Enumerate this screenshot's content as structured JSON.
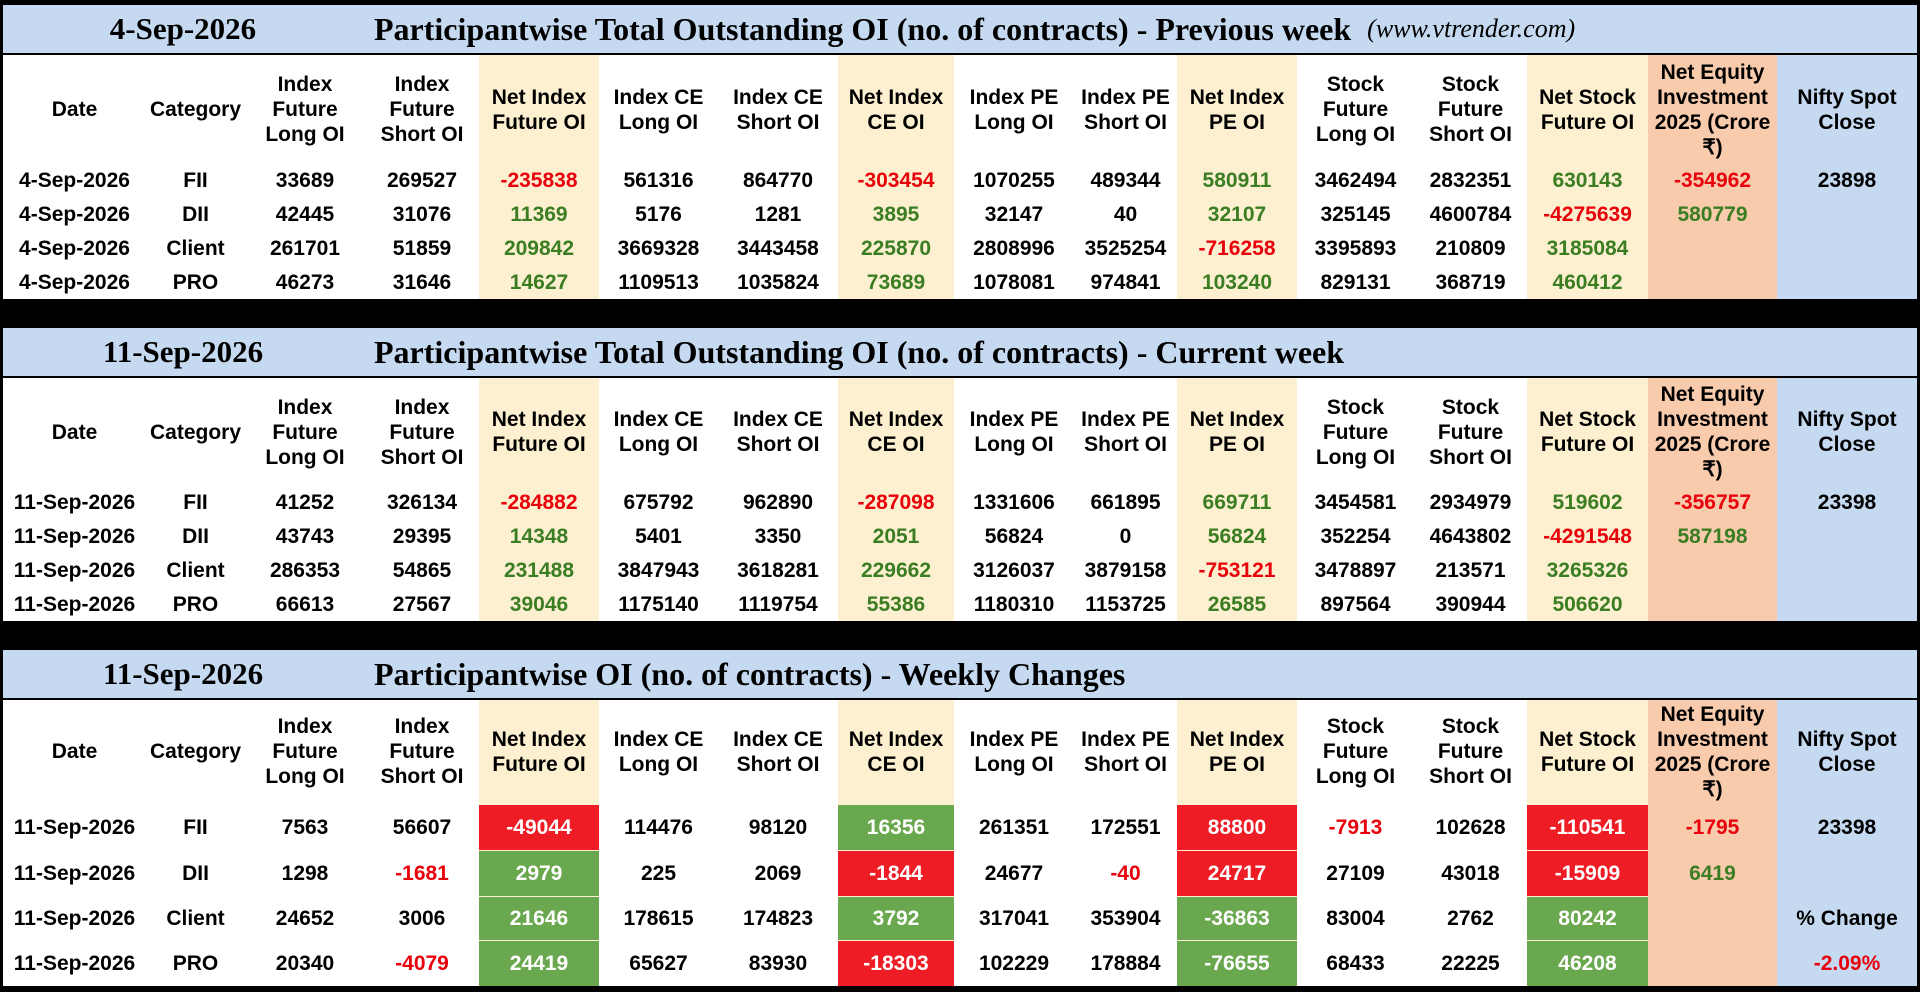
{
  "site": "(www.vtrender.com)",
  "colors": {
    "band": "#c5d9f1",
    "net_column": "#fdf0d0",
    "equity_column": "#f8cbad",
    "positive_text": "#3a7d22",
    "negative_text": "#e8000b",
    "positive_fill": "#6aa84f",
    "negative_fill": "#ee1c25"
  },
  "columns": [
    {
      "label": "Date",
      "type": "plain"
    },
    {
      "label": "Category",
      "type": "plain"
    },
    {
      "label": "Index Future Long OI",
      "type": "plain"
    },
    {
      "label": "Index Future Short OI",
      "type": "plain"
    },
    {
      "label": "Net Index Future OI",
      "type": "net"
    },
    {
      "label": "Index CE Long OI",
      "type": "plain"
    },
    {
      "label": "Index CE Short OI",
      "type": "plain"
    },
    {
      "label": "Net Index CE OI",
      "type": "net"
    },
    {
      "label": "Index PE Long OI",
      "type": "plain"
    },
    {
      "label": "Index PE Short OI",
      "type": "plain"
    },
    {
      "label": "Net Index PE OI",
      "type": "net"
    },
    {
      "label": "Stock Future Long OI",
      "type": "plain"
    },
    {
      "label": "Stock Future Short OI",
      "type": "plain"
    },
    {
      "label": "Net Stock Future OI",
      "type": "net"
    },
    {
      "label": "Net Equity Investment 2025 (Crore ₹)",
      "type": "equity"
    },
    {
      "label": "Nifty Spot Close",
      "type": "nifty"
    }
  ],
  "sections": [
    {
      "date": "4-Sep-2026",
      "title": "Participantwise Total Outstanding OI (no. of contracts) - Previous week",
      "show_site": true,
      "rows": [
        [
          "4-Sep-2026",
          "FII",
          "33689",
          "269527",
          "-235838",
          "561316",
          "864770",
          "-303454",
          "1070255",
          "489344",
          "580911",
          "3462494",
          "2832351",
          "630143",
          "-354962"
        ],
        [
          "4-Sep-2026",
          "DII",
          "42445",
          "31076",
          "11369",
          "5176",
          "1281",
          "3895",
          "32147",
          "40",
          "32107",
          "325145",
          "4600784",
          "-4275639",
          "580779"
        ],
        [
          "4-Sep-2026",
          "Client",
          "261701",
          "51859",
          "209842",
          "3669328",
          "3443458",
          "225870",
          "2808996",
          "3525254",
          "-716258",
          "3395893",
          "210809",
          "3185084",
          ""
        ],
        [
          "4-Sep-2026",
          "PRO",
          "46273",
          "31646",
          "14627",
          "1109513",
          "1035824",
          "73689",
          "1078081",
          "974841",
          "103240",
          "829131",
          "368719",
          "460412",
          ""
        ]
      ],
      "nifty": [
        "23898",
        "",
        "",
        ""
      ]
    },
    {
      "date": "11-Sep-2026",
      "title": "Participantwise Total Outstanding OI (no. of contracts) - Current week",
      "show_site": false,
      "rows": [
        [
          "11-Sep-2026",
          "FII",
          "41252",
          "326134",
          "-284882",
          "675792",
          "962890",
          "-287098",
          "1331606",
          "661895",
          "669711",
          "3454581",
          "2934979",
          "519602",
          "-356757"
        ],
        [
          "11-Sep-2026",
          "DII",
          "43743",
          "29395",
          "14348",
          "5401",
          "3350",
          "2051",
          "56824",
          "0",
          "56824",
          "352254",
          "4643802",
          "-4291548",
          "587198"
        ],
        [
          "11-Sep-2026",
          "Client",
          "286353",
          "54865",
          "231488",
          "3847943",
          "3618281",
          "229662",
          "3126037",
          "3879158",
          "-753121",
          "3478897",
          "213571",
          "3265326",
          ""
        ],
        [
          "11-Sep-2026",
          "PRO",
          "66613",
          "27567",
          "39046",
          "1175140",
          "1119754",
          "55386",
          "1180310",
          "1153725",
          "26585",
          "897564",
          "390944",
          "506620",
          ""
        ]
      ],
      "nifty": [
        "23398",
        "",
        "",
        ""
      ]
    },
    {
      "date": "11-Sep-2026",
      "title": "Participantwise OI (no. of contracts) - Weekly Changes",
      "show_site": false,
      "rows": [
        [
          "11-Sep-2026",
          "FII",
          "7563",
          "56607",
          "-49044",
          "114476",
          "98120",
          "16356",
          "261351",
          "172551",
          "88800",
          "-7913",
          "102628",
          "-110541",
          "-1795"
        ],
        [
          "11-Sep-2026",
          "DII",
          "1298",
          "-1681",
          "2979",
          "225",
          "2069",
          "-1844",
          "24677",
          "-40",
          "24717",
          "27109",
          "43018",
          "-15909",
          "6419"
        ],
        [
          "11-Sep-2026",
          "Client",
          "24652",
          "3006",
          "21646",
          "178615",
          "174823",
          "3792",
          "317041",
          "353904",
          "-36863",
          "83004",
          "2762",
          "80242",
          ""
        ],
        [
          "11-Sep-2026",
          "PRO",
          "20340",
          "-4079",
          "24419",
          "65627",
          "83930",
          "-18303",
          "102229",
          "178884",
          "-76655",
          "68433",
          "22225",
          "46208",
          ""
        ]
      ],
      "nifty": [
        "23398",
        "",
        "% Change",
        "-2.09%"
      ],
      "net_fills": [
        [
          "neg",
          "pos",
          "neg",
          "neg"
        ],
        [
          "pos",
          "neg",
          "neg",
          "neg"
        ],
        [
          "pos",
          "pos",
          "pos",
          "pos"
        ],
        [
          "pos",
          "neg",
          "pos",
          "pos"
        ]
      ]
    }
  ]
}
